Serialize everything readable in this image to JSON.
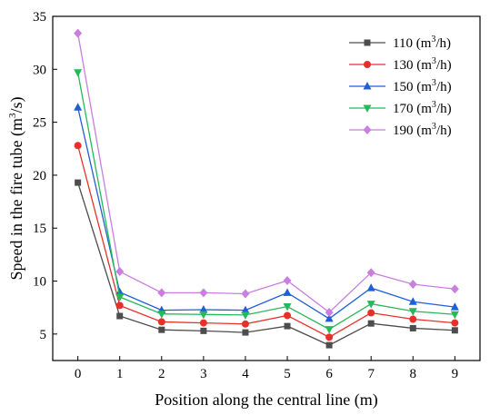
{
  "chart_data": {
    "type": "line",
    "xlabel": "Position along the central line (m)",
    "ylabel": "Speed in the fire tube (m³/s)",
    "x": [
      0,
      1,
      2,
      3,
      4,
      5,
      6,
      7,
      8,
      9
    ],
    "xlim": [
      -0.6,
      9.6
    ],
    "ylim": [
      2.5,
      35
    ],
    "xticks": [
      0,
      1,
      2,
      3,
      4,
      5,
      6,
      7,
      8,
      9
    ],
    "yticks": [
      5,
      10,
      15,
      20,
      25,
      30,
      35
    ],
    "legend_position": "top-right",
    "grid": false,
    "series": [
      {
        "name": "110 (m³/h)",
        "color": "#4d4d4d",
        "marker": "square",
        "values": [
          19.3,
          6.7,
          5.4,
          5.3,
          5.15,
          5.75,
          3.95,
          6.0,
          5.55,
          5.35
        ]
      },
      {
        "name": "130 (m³/h)",
        "color": "#e8302a",
        "marker": "circle",
        "values": [
          22.8,
          7.7,
          6.15,
          6.05,
          5.95,
          6.75,
          4.7,
          7.0,
          6.4,
          6.05
        ]
      },
      {
        "name": "150 (m³/h)",
        "color": "#1f5fd6",
        "marker": "triangle-up",
        "values": [
          26.4,
          8.95,
          7.25,
          7.3,
          7.25,
          8.9,
          6.45,
          9.35,
          8.05,
          7.55
        ]
      },
      {
        "name": "170 (m³/h)",
        "color": "#27b85a",
        "marker": "triangle-down",
        "values": [
          29.7,
          8.5,
          6.9,
          6.85,
          6.8,
          7.6,
          5.45,
          7.85,
          7.15,
          6.85
        ]
      },
      {
        "name": "190 (m³/h)",
        "color": "#c97ee0",
        "marker": "diamond",
        "values": [
          33.4,
          10.9,
          8.9,
          8.9,
          8.8,
          10.05,
          7.05,
          10.8,
          9.7,
          9.25
        ]
      }
    ]
  }
}
